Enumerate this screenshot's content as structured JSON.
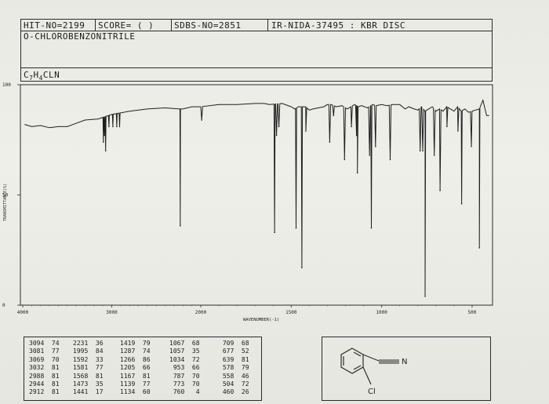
{
  "header": {
    "hit_no": "HIT-NO=2199",
    "score": "SCORE=  (    )",
    "sdbs_no": "SDBS-NO=2851",
    "method": "IR-NIDA-37495 : KBR DISC",
    "compound_name": "O-CHLOROBENZONITRILE",
    "formula": "C7H4CLN"
  },
  "chart_data": {
    "type": "line",
    "title": "",
    "xlabel": "WAVENUMBER(-1)",
    "ylabel": "TRANSMITTANCE(%)",
    "xlim": [
      4000,
      400
    ],
    "ylim": [
      0,
      100
    ],
    "x_axis_scale_change_at": 2000,
    "x_ticks": [
      {
        "value": 4000,
        "label": "4000"
      },
      {
        "value": 3000,
        "label": "3000"
      },
      {
        "value": 2000,
        "label": "2000"
      },
      {
        "value": 1500,
        "label": "1500"
      },
      {
        "value": 1000,
        "label": "1000"
      },
      {
        "value": 500,
        "label": "500"
      }
    ],
    "y_ticks": [
      {
        "value": 100,
        "label": "100"
      },
      {
        "value": 50,
        "label": "50"
      },
      {
        "value": 0,
        "label": "0"
      }
    ],
    "grid": false,
    "baseline": [
      [
        3980,
        82
      ],
      [
        3900,
        81
      ],
      [
        3800,
        81.5
      ],
      [
        3700,
        80.5
      ],
      [
        3600,
        81
      ],
      [
        3500,
        81
      ],
      [
        3400,
        82.5
      ],
      [
        3300,
        84
      ],
      [
        3150,
        84.5
      ],
      [
        3000,
        86.5
      ],
      [
        2800,
        88
      ],
      [
        2600,
        89
      ],
      [
        2400,
        89.5
      ],
      [
        2240,
        89
      ],
      [
        2200,
        89
      ],
      [
        2100,
        90
      ],
      [
        2000,
        90
      ],
      [
        1900,
        91
      ],
      [
        1800,
        91
      ],
      [
        1700,
        91.5
      ],
      [
        1650,
        91.5
      ],
      [
        1620,
        91
      ],
      [
        1550,
        91.5
      ],
      [
        1500,
        90
      ],
      [
        1480,
        89
      ],
      [
        1460,
        90
      ],
      [
        1420,
        90
      ],
      [
        1400,
        88.5
      ],
      [
        1380,
        89
      ],
      [
        1350,
        89.5
      ],
      [
        1320,
        90
      ],
      [
        1300,
        91
      ],
      [
        1280,
        91
      ],
      [
        1250,
        90
      ],
      [
        1220,
        90.5
      ],
      [
        1190,
        89
      ],
      [
        1170,
        90
      ],
      [
        1150,
        91
      ],
      [
        1130,
        90
      ],
      [
        1110,
        90.5
      ],
      [
        1080,
        89.5
      ],
      [
        1050,
        91
      ],
      [
        1030,
        90.5
      ],
      [
        1000,
        91
      ],
      [
        970,
        90.5
      ],
      [
        940,
        91
      ],
      [
        900,
        91
      ],
      [
        870,
        89
      ],
      [
        850,
        90
      ],
      [
        820,
        89
      ],
      [
        800,
        88.5
      ],
      [
        780,
        90
      ],
      [
        760,
        88
      ],
      [
        740,
        89
      ],
      [
        720,
        90
      ],
      [
        700,
        88
      ],
      [
        680,
        89
      ],
      [
        660,
        88
      ],
      [
        640,
        90
      ],
      [
        620,
        89
      ],
      [
        600,
        88
      ],
      [
        580,
        90
      ],
      [
        560,
        88
      ],
      [
        540,
        89
      ],
      [
        520,
        87.5
      ],
      [
        500,
        88
      ],
      [
        480,
        88.5
      ],
      [
        460,
        89
      ],
      [
        440,
        93
      ],
      [
        420,
        86
      ],
      [
        405,
        86
      ]
    ],
    "peaks": [
      {
        "wavenumber": 3094,
        "transmittance": 74
      },
      {
        "wavenumber": 3081,
        "transmittance": 77
      },
      {
        "wavenumber": 3069,
        "transmittance": 70
      },
      {
        "wavenumber": 3032,
        "transmittance": 81
      },
      {
        "wavenumber": 2988,
        "transmittance": 81
      },
      {
        "wavenumber": 2944,
        "transmittance": 81
      },
      {
        "wavenumber": 2912,
        "transmittance": 81
      },
      {
        "wavenumber": 2231,
        "transmittance": 36
      },
      {
        "wavenumber": 1995,
        "transmittance": 84
      },
      {
        "wavenumber": 1592,
        "transmittance": 33
      },
      {
        "wavenumber": 1581,
        "transmittance": 77
      },
      {
        "wavenumber": 1568,
        "transmittance": 81
      },
      {
        "wavenumber": 1473,
        "transmittance": 35
      },
      {
        "wavenumber": 1441,
        "transmittance": 17
      },
      {
        "wavenumber": 1419,
        "transmittance": 79
      },
      {
        "wavenumber": 1287,
        "transmittance": 74
      },
      {
        "wavenumber": 1266,
        "transmittance": 86
      },
      {
        "wavenumber": 1205,
        "transmittance": 66
      },
      {
        "wavenumber": 1167,
        "transmittance": 81
      },
      {
        "wavenumber": 1139,
        "transmittance": 77
      },
      {
        "wavenumber": 1134,
        "transmittance": 60
      },
      {
        "wavenumber": 1067,
        "transmittance": 68
      },
      {
        "wavenumber": 1057,
        "transmittance": 35
      },
      {
        "wavenumber": 1034,
        "transmittance": 72
      },
      {
        "wavenumber": 953,
        "transmittance": 66
      },
      {
        "wavenumber": 787,
        "transmittance": 70
      },
      {
        "wavenumber": 773,
        "transmittance": 70
      },
      {
        "wavenumber": 760,
        "transmittance": 4
      },
      {
        "wavenumber": 709,
        "transmittance": 68
      },
      {
        "wavenumber": 677,
        "transmittance": 52
      },
      {
        "wavenumber": 639,
        "transmittance": 81
      },
      {
        "wavenumber": 578,
        "transmittance": 79
      },
      {
        "wavenumber": 558,
        "transmittance": 46
      },
      {
        "wavenumber": 504,
        "transmittance": 72
      },
      {
        "wavenumber": 460,
        "transmittance": 26
      }
    ]
  },
  "peak_table": {
    "columns": [
      [
        "3094  74",
        "3081  77",
        "3069  70",
        "3032  81",
        "2988  81",
        "2944  81",
        "2912  81"
      ],
      [
        "2231  36",
        "1995  84",
        "1592  33",
        "1581  77",
        "1568  81",
        "1473  35",
        "1441  17"
      ],
      [
        "1419  79",
        "1287  74",
        "1266  86",
        "1205  66",
        "1167  81",
        "1139  77",
        "1134  60"
      ],
      [
        "1067  68",
        "1057  35",
        "1034  72",
        " 953  66",
        " 787  70",
        " 773  70",
        " 760   4"
      ],
      [
        " 709  68",
        " 677  52",
        " 639  81",
        " 578  79",
        " 558  46",
        " 504  72",
        " 460  26"
      ]
    ]
  },
  "structure": {
    "nitrile_atom": "N",
    "chloro_atom": "Cl"
  }
}
